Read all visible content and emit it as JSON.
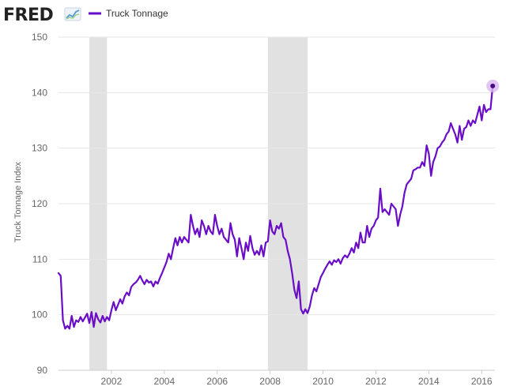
{
  "header": {
    "brand": "FRED",
    "brand_icon": "chart-line-icon"
  },
  "colors": {
    "series": "#6a0dc7",
    "recession": "#e1e1e1",
    "grid": "#e6e6e6",
    "marker_halo": "#d9b8ee",
    "marker": "#4b0a8c"
  },
  "chart_data": {
    "type": "line",
    "title": "",
    "xlabel": "",
    "ylabel": "Truck Tonnage Index",
    "ylim": [
      90,
      150
    ],
    "yticks": [
      90,
      100,
      110,
      120,
      130,
      140,
      150
    ],
    "xlim": [
      2000.0,
      2016.5
    ],
    "xticks": [
      "2002",
      "2004",
      "2006",
      "2008",
      "2010",
      "2012",
      "2014",
      "2016"
    ],
    "grid": true,
    "legend": "top-left",
    "recessions": [
      {
        "start": "2001-03",
        "end": "2001-11"
      },
      {
        "start": "2007-12",
        "end": "2009-06"
      }
    ],
    "series": [
      {
        "name": "Truck Tonnage",
        "points": [
          [
            "2000-01",
            107.5
          ],
          [
            "2000-02",
            107.0
          ],
          [
            "2000-03",
            99.0
          ],
          [
            "2000-04",
            97.5
          ],
          [
            "2000-05",
            98.0
          ],
          [
            "2000-06",
            97.5
          ],
          [
            "2000-07",
            99.8
          ],
          [
            "2000-08",
            97.8
          ],
          [
            "2000-09",
            99.0
          ],
          [
            "2000-10",
            98.7
          ],
          [
            "2000-11",
            99.6
          ],
          [
            "2000-12",
            98.8
          ],
          [
            "2001-01",
            99.5
          ],
          [
            "2001-02",
            100.2
          ],
          [
            "2001-03",
            98.5
          ],
          [
            "2001-04",
            100.5
          ],
          [
            "2001-05",
            97.8
          ],
          [
            "2001-06",
            100.3
          ],
          [
            "2001-07",
            99.2
          ],
          [
            "2001-08",
            98.6
          ],
          [
            "2001-09",
            99.8
          ],
          [
            "2001-10",
            98.8
          ],
          [
            "2001-11",
            99.6
          ],
          [
            "2001-12",
            99.0
          ],
          [
            "2002-01",
            100.8
          ],
          [
            "2002-02",
            102.3
          ],
          [
            "2002-03",
            100.8
          ],
          [
            "2002-04",
            101.8
          ],
          [
            "2002-05",
            102.8
          ],
          [
            "2002-06",
            102.0
          ],
          [
            "2002-07",
            103.3
          ],
          [
            "2002-08",
            104.0
          ],
          [
            "2002-09",
            103.5
          ],
          [
            "2002-10",
            105.0
          ],
          [
            "2002-11",
            105.5
          ],
          [
            "2002-12",
            105.8
          ],
          [
            "2003-01",
            106.3
          ],
          [
            "2003-02",
            107.0
          ],
          [
            "2003-03",
            106.2
          ],
          [
            "2003-04",
            105.5
          ],
          [
            "2003-05",
            106.3
          ],
          [
            "2003-06",
            105.8
          ],
          [
            "2003-07",
            106.0
          ],
          [
            "2003-08",
            105.1
          ],
          [
            "2003-09",
            106.0
          ],
          [
            "2003-10",
            105.6
          ],
          [
            "2003-11",
            106.6
          ],
          [
            "2003-12",
            107.5
          ],
          [
            "2004-01",
            108.5
          ],
          [
            "2004-02",
            109.5
          ],
          [
            "2004-03",
            111.0
          ],
          [
            "2004-04",
            110.0
          ],
          [
            "2004-05",
            112.0
          ],
          [
            "2004-06",
            113.8
          ],
          [
            "2004-07",
            112.5
          ],
          [
            "2004-08",
            114.0
          ],
          [
            "2004-09",
            113.0
          ],
          [
            "2004-10",
            114.0
          ],
          [
            "2004-11",
            113.5
          ],
          [
            "2004-12",
            113.0
          ],
          [
            "2005-01",
            118.0
          ],
          [
            "2005-02",
            116.0
          ],
          [
            "2005-03",
            114.5
          ],
          [
            "2005-04",
            115.5
          ],
          [
            "2005-05",
            114.0
          ],
          [
            "2005-06",
            117.0
          ],
          [
            "2005-07",
            116.0
          ],
          [
            "2005-08",
            114.5
          ],
          [
            "2005-09",
            116.0
          ],
          [
            "2005-10",
            115.0
          ],
          [
            "2005-11",
            114.5
          ],
          [
            "2005-12",
            118.0
          ],
          [
            "2006-01",
            116.0
          ],
          [
            "2006-02",
            114.5
          ],
          [
            "2006-03",
            115.5
          ],
          [
            "2006-04",
            114.0
          ],
          [
            "2006-05",
            113.5
          ],
          [
            "2006-06",
            113.0
          ],
          [
            "2006-07",
            116.5
          ],
          [
            "2006-08",
            114.5
          ],
          [
            "2006-09",
            113.5
          ],
          [
            "2006-10",
            110.5
          ],
          [
            "2006-11",
            113.8
          ],
          [
            "2006-12",
            112.0
          ],
          [
            "2007-01",
            110.0
          ],
          [
            "2007-02",
            113.0
          ],
          [
            "2007-03",
            111.5
          ],
          [
            "2007-04",
            114.2
          ],
          [
            "2007-05",
            112.0
          ],
          [
            "2007-06",
            110.8
          ],
          [
            "2007-07",
            111.5
          ],
          [
            "2007-08",
            110.8
          ],
          [
            "2007-09",
            112.5
          ],
          [
            "2007-10",
            110.5
          ],
          [
            "2007-11",
            113.0
          ],
          [
            "2007-12",
            113.2
          ],
          [
            "2008-01",
            117.0
          ],
          [
            "2008-02",
            115.0
          ],
          [
            "2008-03",
            114.5
          ],
          [
            "2008-04",
            116.0
          ],
          [
            "2008-05",
            115.5
          ],
          [
            "2008-06",
            116.5
          ],
          [
            "2008-07",
            114.0
          ],
          [
            "2008-08",
            113.5
          ],
          [
            "2008-09",
            111.5
          ],
          [
            "2008-10",
            110.0
          ],
          [
            "2008-11",
            107.5
          ],
          [
            "2008-12",
            104.5
          ],
          [
            "2009-01",
            103.0
          ],
          [
            "2009-02",
            106.0
          ],
          [
            "2009-03",
            101.0
          ],
          [
            "2009-04",
            100.2
          ],
          [
            "2009-05",
            101.0
          ],
          [
            "2009-06",
            100.3
          ],
          [
            "2009-07",
            101.5
          ],
          [
            "2009-08",
            103.5
          ],
          [
            "2009-09",
            104.8
          ],
          [
            "2009-10",
            104.2
          ],
          [
            "2009-11",
            105.5
          ],
          [
            "2009-12",
            106.8
          ],
          [
            "2010-01",
            107.5
          ],
          [
            "2010-02",
            108.3
          ],
          [
            "2010-03",
            109.0
          ],
          [
            "2010-04",
            109.6
          ],
          [
            "2010-05",
            109.0
          ],
          [
            "2010-06",
            109.8
          ],
          [
            "2010-07",
            109.5
          ],
          [
            "2010-08",
            110.0
          ],
          [
            "2010-09",
            109.2
          ],
          [
            "2010-10",
            110.2
          ],
          [
            "2010-11",
            110.7
          ],
          [
            "2010-12",
            110.3
          ],
          [
            "2011-01",
            111.0
          ],
          [
            "2011-02",
            112.0
          ],
          [
            "2011-03",
            111.2
          ],
          [
            "2011-04",
            113.0
          ],
          [
            "2011-05",
            112.0
          ],
          [
            "2011-06",
            114.8
          ],
          [
            "2011-07",
            113.0
          ],
          [
            "2011-08",
            113.0
          ],
          [
            "2011-09",
            116.0
          ],
          [
            "2011-10",
            114.0
          ],
          [
            "2011-11",
            115.5
          ],
          [
            "2011-12",
            116.0
          ],
          [
            "2012-01",
            117.0
          ],
          [
            "2012-02",
            117.5
          ],
          [
            "2012-03",
            122.7
          ],
          [
            "2012-04",
            118.5
          ],
          [
            "2012-05",
            119.0
          ],
          [
            "2012-06",
            118.5
          ],
          [
            "2012-07",
            118.0
          ],
          [
            "2012-08",
            120.0
          ],
          [
            "2012-09",
            119.5
          ],
          [
            "2012-10",
            119.0
          ],
          [
            "2012-11",
            116.0
          ],
          [
            "2012-12",
            118.0
          ],
          [
            "2013-01",
            119.5
          ],
          [
            "2013-02",
            122.0
          ],
          [
            "2013-03",
            123.5
          ],
          [
            "2013-04",
            124.0
          ],
          [
            "2013-05",
            124.5
          ],
          [
            "2013-06",
            126.0
          ],
          [
            "2013-07",
            126.2
          ],
          [
            "2013-08",
            126.5
          ],
          [
            "2013-09",
            126.5
          ],
          [
            "2013-10",
            127.5
          ],
          [
            "2013-11",
            126.8
          ],
          [
            "2013-12",
            130.5
          ],
          [
            "2014-01",
            129.0
          ],
          [
            "2014-02",
            125.0
          ],
          [
            "2014-03",
            127.5
          ],
          [
            "2014-04",
            128.5
          ],
          [
            "2014-05",
            130.0
          ],
          [
            "2014-06",
            130.3
          ],
          [
            "2014-07",
            131.0
          ],
          [
            "2014-08",
            131.5
          ],
          [
            "2014-09",
            132.5
          ],
          [
            "2014-10",
            133.0
          ],
          [
            "2014-11",
            134.5
          ],
          [
            "2014-12",
            133.5
          ],
          [
            "2015-01",
            132.5
          ],
          [
            "2015-02",
            131.0
          ],
          [
            "2015-03",
            134.0
          ],
          [
            "2015-04",
            131.5
          ],
          [
            "2015-05",
            133.5
          ],
          [
            "2015-06",
            133.8
          ],
          [
            "2015-07",
            135.0
          ],
          [
            "2015-08",
            134.0
          ],
          [
            "2015-09",
            135.0
          ],
          [
            "2015-10",
            134.5
          ],
          [
            "2015-11",
            136.0
          ],
          [
            "2015-12",
            137.5
          ],
          [
            "2016-01",
            135.0
          ],
          [
            "2016-02",
            137.8
          ],
          [
            "2016-03",
            136.5
          ],
          [
            "2016-04",
            137.0
          ],
          [
            "2016-05",
            137.0
          ],
          [
            "2016-06",
            141.2
          ]
        ]
      }
    ]
  }
}
